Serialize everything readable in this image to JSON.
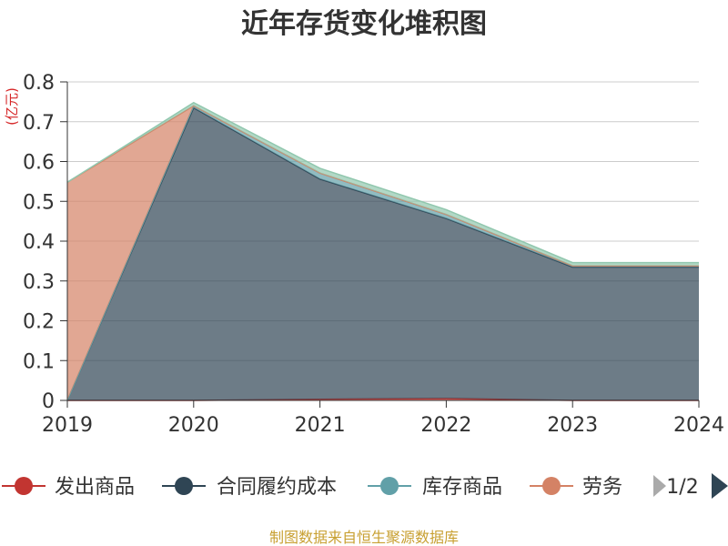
{
  "chart_data": {
    "type": "area",
    "stacked": true,
    "title": "近年存货变化堆积图",
    "ylabel": "(亿元)",
    "x": [
      "2019",
      "2020",
      "2021",
      "2022",
      "2023",
      "2024"
    ],
    "ylim": [
      0,
      0.8
    ],
    "yticks": [
      "0",
      "0.1",
      "0.2",
      "0.3",
      "0.4",
      "0.5",
      "0.6",
      "0.7",
      "0.8"
    ],
    "grid": true,
    "series": [
      {
        "name": "发出商品",
        "color": "#c23531",
        "values": [
          0,
          0,
          0.003,
          0.005,
          0,
          0
        ]
      },
      {
        "name": "合同履约成本",
        "color": "#2f4554",
        "values": [
          0,
          0.735,
          0.553,
          0.452,
          0.335,
          0.335
        ]
      },
      {
        "name": "库存商品",
        "color": "#61a0a8",
        "values": [
          0,
          0.005,
          0.015,
          0.01,
          0.003,
          0.003
        ]
      },
      {
        "name": "劳务",
        "color": "#d48265",
        "values": [
          0.548,
          0,
          0,
          0,
          0,
          0
        ]
      },
      {
        "name": "",
        "color": "#91c7ae",
        "values": [
          0,
          0.008,
          0.012,
          0.012,
          0.008,
          0.008
        ]
      }
    ],
    "legend": {
      "position": "bottom",
      "visible_items": [
        "发出商品",
        "合同履约成本",
        "库存商品",
        "劳务"
      ],
      "page": "1/2"
    },
    "source": "制图数据来自恒生聚源数据库"
  }
}
